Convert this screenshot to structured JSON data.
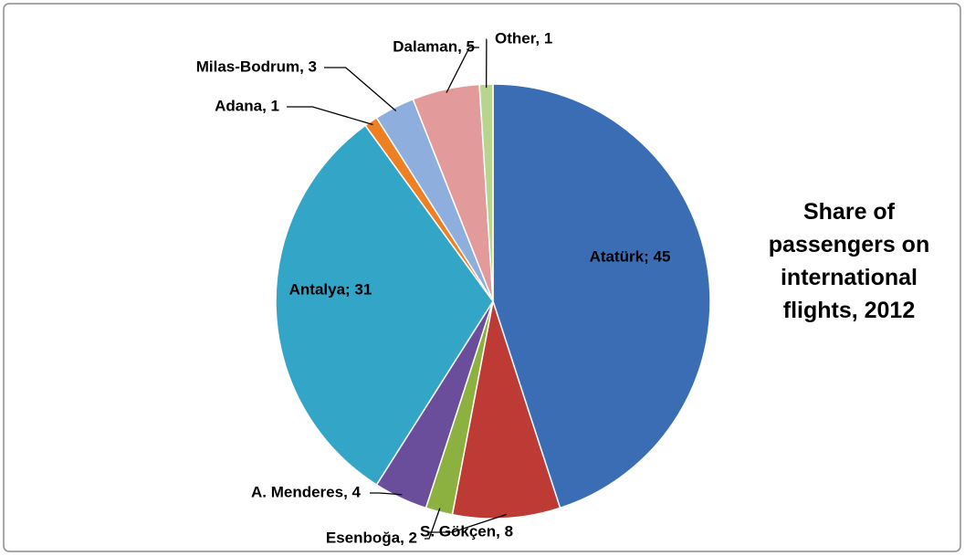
{
  "chart_data": {
    "type": "pie",
    "title": "Share of passengers on international flights, 2012",
    "values": [
      45,
      8,
      2,
      4,
      31,
      1,
      3,
      5,
      1
    ],
    "value_labels": [
      "Atatürk; 45",
      "S. Gökçen, 8",
      "Esenboğa, 2",
      "A. Menderes, 4",
      "Antalya; 31",
      "Adana, 1",
      "Milas-Bodrum, 3",
      "Dalaman, 5",
      "Other, 1"
    ],
    "colors": [
      "#3b6db5",
      "#bd3a35",
      "#8cb140",
      "#6a4d9b",
      "#33a6c8",
      "#ee7f22",
      "#8eaede",
      "#e39a9a",
      "#b9d58d"
    ]
  }
}
